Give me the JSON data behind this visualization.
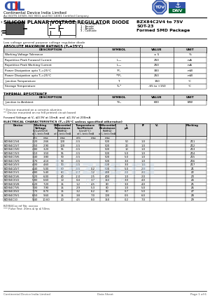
{
  "title_main": "SILICON PLANAR VOLTAGE REGULATOR DIODE",
  "title_part": "BZX84C2V4 to 75V",
  "company_name": "Continental Device India Limited",
  "company_sub": "An ISO/TS 16949, ISO 9001 and ISO 14001 Certified Company",
  "description": "Low voltage general purpose voltage regulator diode",
  "abs_max_title": "ABSOLUTE MAXIMUM RATINGS (Tₐ=25°C)",
  "abs_max_rows": [
    [
      "Working Voltage Tolerance",
      "",
      "± 5",
      "%"
    ],
    [
      "Repetitive Peak Forward Current",
      "Iₘₙₓ",
      "250",
      "mA"
    ],
    [
      "Repetitive Peak Working Current",
      "Iₘₙₓ",
      "250",
      "mA"
    ],
    [
      "Power Dissipation upto Tₐ=25°C",
      "*Pₑ",
      "300",
      "mW"
    ],
    [
      "Power Dissipation upto Tₐ=25°C",
      "**Pₑ",
      "250",
      "mW"
    ],
    [
      "Junction Temperature",
      "Tⱼ",
      "150",
      "°C"
    ],
    [
      "Storage Temperature",
      "Tₛₜᴳ",
      "-65 to +150",
      "°C"
    ]
  ],
  "thermal_title": "THERMAL RESISTANCE",
  "thermal_rows": [
    [
      "Junction to Ambient",
      "*θⱼₐ",
      "600",
      "K/W"
    ]
  ],
  "footnote1": "* Device mounted on a ceramic alumina",
  "footnote2": "** Device mounted on no frill printed circuit board",
  "fwd_voltage_note": "Forward Voltage at Vₑ ≤0.9V at 10mA  and  ≤1.5V at 200mA",
  "elec_title": "ELECTRICAL CHARACTERISTICS (Tₐ=25°C unless specified otherwise)",
  "elec_rows": [
    [
      "BZX84C2V4",
      "2.20",
      "2.66",
      "100",
      "-3.5",
      "",
      "500",
      "50",
      "1.0",
      "Z11"
    ],
    [
      "BZX84C2V7",
      "2.50",
      "2.90",
      "100",
      "-3.5",
      "",
      "500",
      "20",
      "1.0",
      "Z12"
    ],
    [
      "BZX84C3V0",
      "2.80",
      "3.20",
      "95",
      "-3.5",
      "",
      "500",
      "10",
      "1.0",
      "Z13"
    ],
    [
      "BZX84C3V3",
      "3.10",
      "3.50",
      "95",
      "-3.5",
      "",
      "500",
      "5.0",
      "1.0",
      "Z14"
    ],
    [
      "BZX84C3V6",
      "3.40",
      "3.80",
      "90",
      "-3.5",
      "",
      "500",
      "5.0",
      "1.0",
      "Z15"
    ],
    [
      "BZX84C3V9",
      "3.70",
      "4.10",
      "90",
      "-3.5",
      "",
      "500",
      "3.0",
      "1.0",
      "Z16"
    ],
    [
      "BZX84C4V3",
      "4.00",
      "4.60",
      "90",
      "-3.5",
      "",
      "500",
      "3.0",
      "1.0",
      "Z17"
    ],
    [
      "BZX84C4V7",
      "4.40",
      "5.00",
      "80",
      "-3.5",
      "0.2",
      "500",
      "5.0",
      "2.0",
      "Z1"
    ],
    [
      "BZX84C5V1",
      "4.80",
      "5.40",
      "60",
      "-2.7",
      "1.2",
      "480",
      "2.0",
      "2.0",
      "Z2"
    ],
    [
      "BZX84C5V6",
      "5.20",
      "6.00",
      "40",
      "-2.0",
      "2.5",
      "400",
      "1.0",
      "2.0",
      "Z3"
    ],
    [
      "BZX84C6V2",
      "5.80",
      "6.60",
      "10",
      "0.4",
      "3.7",
      "150",
      "3.0",
      "4.0",
      "Z4"
    ],
    [
      "BZX84C6V8",
      "6.20",
      "7.20",
      "15",
      "1.2",
      "4.5",
      "80",
      "3.0",
      "4.0",
      "Z5"
    ],
    [
      "BZX84C7V5",
      "7.00",
      "7.90",
      "15",
      "2.9",
      "5.3",
      "80",
      "1.0",
      "5.0",
      "Z6"
    ],
    [
      "BZX84C8V2",
      "7.70",
      "8.70",
      "15",
      "3.2",
      "6.2",
      "80",
      "0.7",
      "5.0",
      "Z7"
    ],
    [
      "BZX84C9V1",
      "8.50",
      "9.60",
      "15",
      "3.8",
      "7.0",
      "100",
      "0.5",
      "6.0",
      "Z8"
    ],
    [
      "BZX84C10",
      "9.40",
      "10.60",
      "20",
      "4.5",
      "8.0",
      "150",
      "0.2",
      "7.0",
      "Z9"
    ]
  ],
  "bottom_note1": "BZX84Cxx ref No: xxxxxx",
  "bottom_note2": "*** Pulse Test: 20ms ≤ tp ≤ 50ms",
  "footer_left": "Continental Device India Limited",
  "footer_center": "Data Sheet",
  "footer_right": "Page 1 of 6"
}
